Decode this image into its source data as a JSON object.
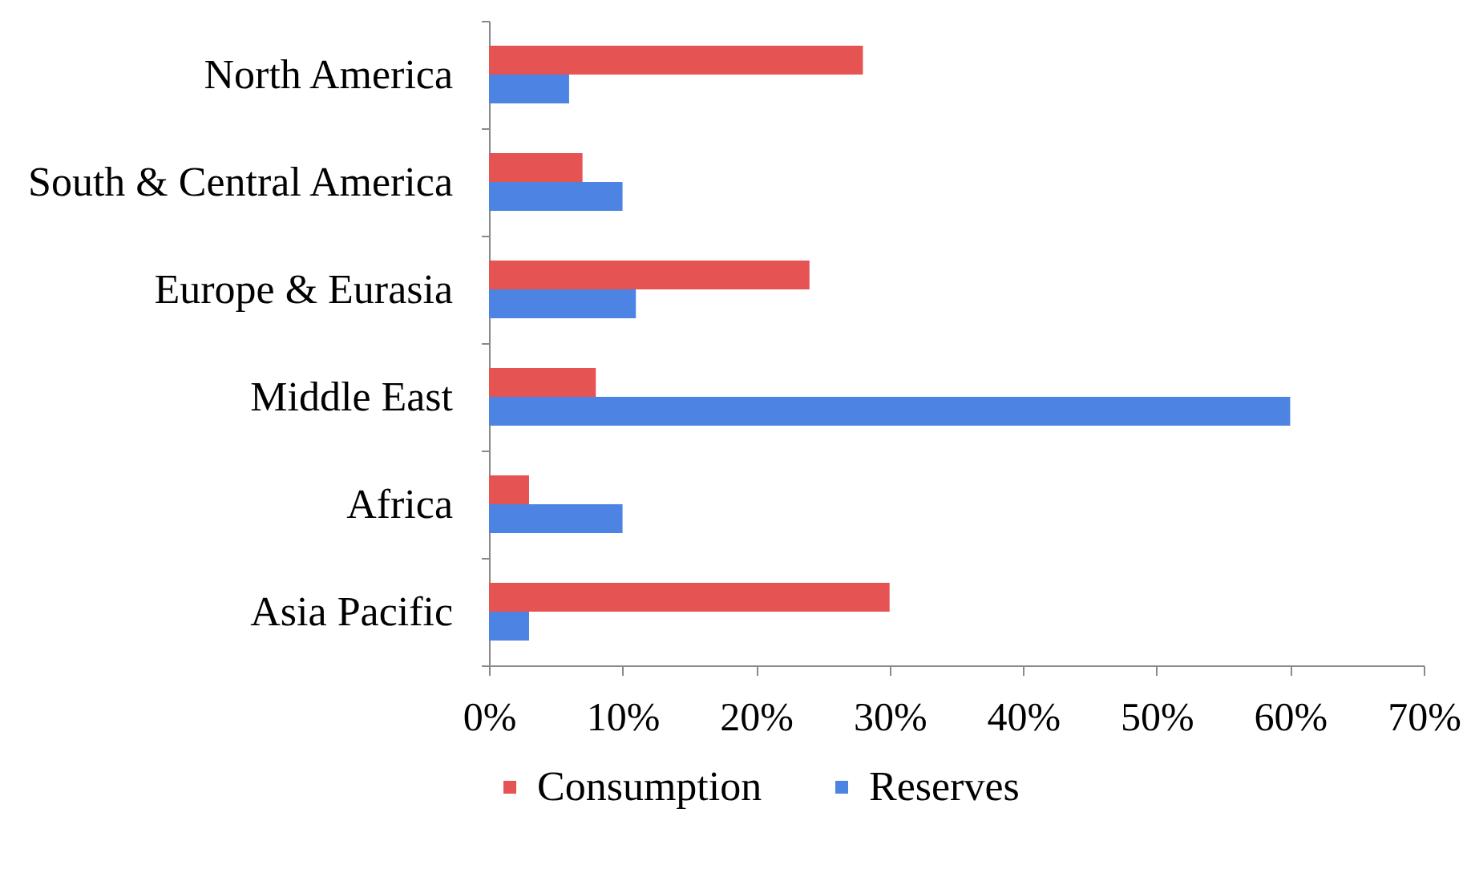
{
  "chart_data": {
    "type": "bar",
    "orientation": "horizontal",
    "categories": [
      "North America",
      "South & Central America",
      "Europe & Eurasia",
      "Middle East",
      "Africa",
      "Asia Pacific"
    ],
    "series": [
      {
        "name": "Consumption",
        "color": "#e55353",
        "values": [
          28,
          7,
          24,
          8,
          3,
          30
        ]
      },
      {
        "name": "Reserves",
        "color": "#4d84e3",
        "values": [
          6,
          10,
          11,
          60,
          10,
          3
        ]
      }
    ],
    "xlim": [
      0,
      70
    ],
    "xticks": [
      {
        "value": 0,
        "label": "0%"
      },
      {
        "value": 10,
        "label": "10%"
      },
      {
        "value": 20,
        "label": "20%"
      },
      {
        "value": 30,
        "label": "30%"
      },
      {
        "value": 40,
        "label": "40%"
      },
      {
        "value": 50,
        "label": "50%"
      },
      {
        "value": 60,
        "label": "60%"
      },
      {
        "value": 70,
        "label": "70%"
      }
    ],
    "grid": false,
    "legend": "bottom"
  }
}
